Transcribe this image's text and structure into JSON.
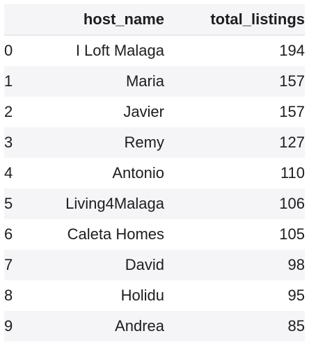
{
  "table": {
    "columns": [
      "",
      "host_name",
      "total_listings"
    ],
    "rows": [
      {
        "index": "0",
        "host_name": "I Loft Malaga",
        "total_listings": "194"
      },
      {
        "index": "1",
        "host_name": "Maria",
        "total_listings": "157"
      },
      {
        "index": "2",
        "host_name": "Javier",
        "total_listings": "157"
      },
      {
        "index": "3",
        "host_name": "Remy",
        "total_listings": "127"
      },
      {
        "index": "4",
        "host_name": "Antonio",
        "total_listings": "110"
      },
      {
        "index": "5",
        "host_name": "Living4Malaga",
        "total_listings": "106"
      },
      {
        "index": "6",
        "host_name": "Caleta Homes",
        "total_listings": "105"
      },
      {
        "index": "7",
        "host_name": "David",
        "total_listings": "98"
      },
      {
        "index": "8",
        "host_name": "Holidu",
        "total_listings": "95"
      },
      {
        "index": "9",
        "host_name": "Andrea",
        "total_listings": "85"
      }
    ]
  },
  "colors": {
    "stripe": "#f5f5f7",
    "text": "#1d1d1f"
  }
}
